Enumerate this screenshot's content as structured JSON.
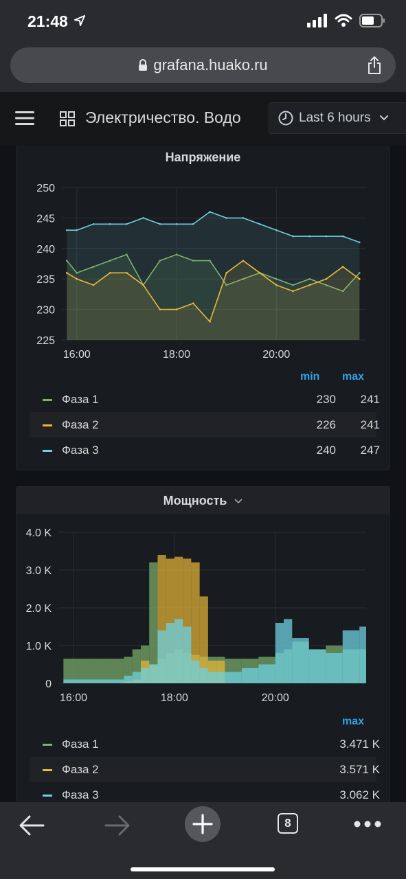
{
  "status_bar": {
    "time": "21:48"
  },
  "browser": {
    "url": "grafana.huako.ru",
    "tab_count": "8"
  },
  "header": {
    "title": "Электричество. Водо",
    "time_range": "Last 6 hours"
  },
  "panels": [
    {
      "title": "Напряжение",
      "legend_columns": [
        "min",
        "max"
      ],
      "legend": [
        {
          "name": "Фаза 1",
          "min": "230",
          "max": "241"
        },
        {
          "name": "Фаза 2",
          "min": "226",
          "max": "241"
        },
        {
          "name": "Фаза 3",
          "min": "240",
          "max": "247"
        }
      ]
    },
    {
      "title": "Мощность",
      "legend_columns": [
        "max"
      ],
      "legend": [
        {
          "name": "Фаза 1",
          "max": "3.471 K"
        },
        {
          "name": "Фаза 2",
          "max": "3.571 K"
        },
        {
          "name": "Фаза 3",
          "max": "3.062 K"
        }
      ]
    }
  ],
  "colors": {
    "phase1": "#7eb26d",
    "phase2": "#eab839",
    "phase3": "#6ed0e0",
    "accent": "#33a2e5"
  },
  "chart_data": [
    {
      "type": "line",
      "title": "Напряжение",
      "x_ticks": [
        "16:00",
        "18:00",
        "20:00"
      ],
      "y_ticks": [
        "225",
        "230",
        "235",
        "240",
        "245",
        "250"
      ],
      "ylim": [
        225,
        250
      ],
      "x": [
        "15:48",
        "16:00",
        "16:20",
        "16:40",
        "17:00",
        "17:20",
        "17:40",
        "18:00",
        "18:20",
        "18:40",
        "19:00",
        "19:20",
        "19:40",
        "20:00",
        "20:20",
        "20:40",
        "21:00",
        "21:20",
        "21:40"
      ],
      "series": [
        {
          "name": "Фаза 1",
          "values": [
            238,
            236,
            237,
            238,
            239,
            234,
            238,
            239,
            238,
            238,
            234,
            235,
            236,
            235,
            234,
            235,
            234,
            233,
            236
          ]
        },
        {
          "name": "Фаза 2",
          "values": [
            236,
            235,
            234,
            236,
            236,
            234,
            230,
            230,
            231,
            228,
            236,
            238,
            236,
            234,
            233,
            234,
            235,
            237,
            235
          ]
        },
        {
          "name": "Фаза 3",
          "values": [
            243,
            243,
            244,
            244,
            244,
            245,
            244,
            244,
            244,
            246,
            245,
            245,
            244,
            243,
            242,
            242,
            242,
            242,
            241
          ]
        }
      ]
    },
    {
      "type": "bar",
      "title": "Мощность",
      "x_ticks": [
        "16:00",
        "18:00",
        "20:00"
      ],
      "y_ticks": [
        "0",
        "1.0 K",
        "2.0 K",
        "3.0 K",
        "4.0 K"
      ],
      "ylim": [
        0,
        4000
      ],
      "x": [
        "15:48",
        "16:00",
        "16:20",
        "16:40",
        "17:00",
        "17:10",
        "17:20",
        "17:30",
        "17:40",
        "17:50",
        "18:00",
        "18:10",
        "18:20",
        "18:30",
        "18:40",
        "18:50",
        "19:00",
        "19:20",
        "19:40",
        "20:00",
        "20:10",
        "20:20",
        "20:40",
        "21:00",
        "21:20",
        "21:40"
      ],
      "series": [
        {
          "name": "Фаза 1",
          "values": [
            650,
            650,
            650,
            650,
            700,
            900,
            1000,
            3200,
            650,
            800,
            900,
            800,
            750,
            700,
            700,
            700,
            650,
            650,
            700,
            800,
            900,
            1100,
            900,
            1000,
            900,
            900
          ]
        },
        {
          "name": "Фаза 2",
          "values": [
            0,
            0,
            0,
            0,
            50,
            100,
            600,
            500,
            3400,
            3300,
            3350,
            3300,
            3200,
            2300,
            600,
            600,
            0,
            0,
            0,
            0,
            0,
            0,
            0,
            0,
            0,
            0
          ]
        },
        {
          "name": "Фаза 3",
          "values": [
            100,
            100,
            100,
            100,
            200,
            300,
            400,
            500,
            1400,
            1600,
            1700,
            1500,
            600,
            400,
            300,
            300,
            300,
            400,
            500,
            1600,
            1700,
            1200,
            900,
            800,
            1400,
            1500
          ]
        }
      ]
    }
  ]
}
